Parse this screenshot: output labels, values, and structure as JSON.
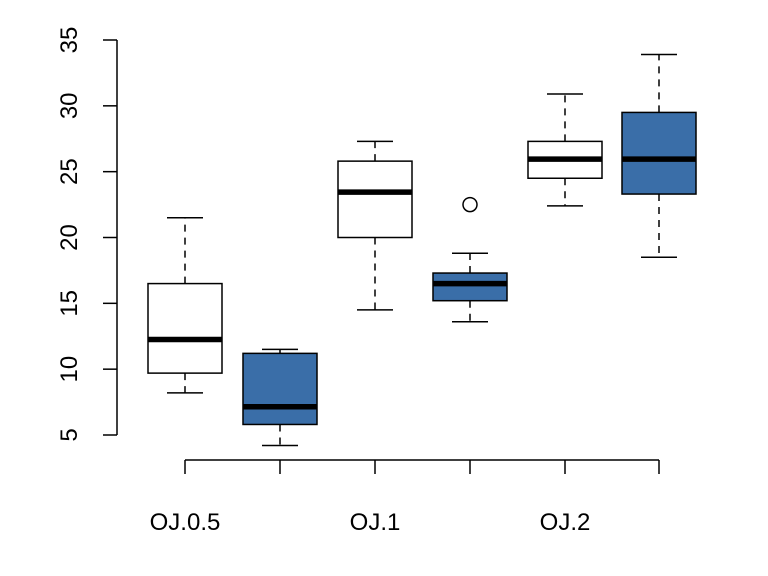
{
  "chart_data": {
    "type": "boxplot",
    "x_tick_labels": [
      "OJ.0.5",
      "OJ.1",
      "OJ.2"
    ],
    "y_ticks": [
      5,
      10,
      15,
      20,
      25,
      30,
      35
    ],
    "ylim": [
      5,
      35
    ],
    "grid": false,
    "colors": {
      "fill_a": "#ffffff",
      "fill_b": "#3a6ea8",
      "stroke": "#000000"
    },
    "boxes": [
      {
        "group": "OJ.0.5",
        "fill": "fill_a",
        "min": 8.2,
        "q1": 9.7,
        "median": 12.25,
        "q3": 16.5,
        "max": 21.5,
        "outliers": []
      },
      {
        "group": "OJ.0.5",
        "fill": "fill_b",
        "min": 4.2,
        "q1": 5.8,
        "median": 7.15,
        "q3": 11.2,
        "max": 11.5,
        "outliers": []
      },
      {
        "group": "OJ.1",
        "fill": "fill_a",
        "min": 14.5,
        "q1": 20.0,
        "median": 23.45,
        "q3": 25.8,
        "max": 27.3,
        "outliers": []
      },
      {
        "group": "OJ.1",
        "fill": "fill_b",
        "min": 13.6,
        "q1": 15.2,
        "median": 16.5,
        "q3": 17.3,
        "max": 18.8,
        "outliers": [
          22.5
        ]
      },
      {
        "group": "OJ.2",
        "fill": "fill_a",
        "min": 22.4,
        "q1": 24.5,
        "median": 25.95,
        "q3": 27.3,
        "max": 30.9,
        "outliers": []
      },
      {
        "group": "OJ.2",
        "fill": "fill_b",
        "min": 18.5,
        "q1": 23.3,
        "median": 25.95,
        "q3": 29.5,
        "max": 33.9,
        "outliers": []
      }
    ]
  }
}
